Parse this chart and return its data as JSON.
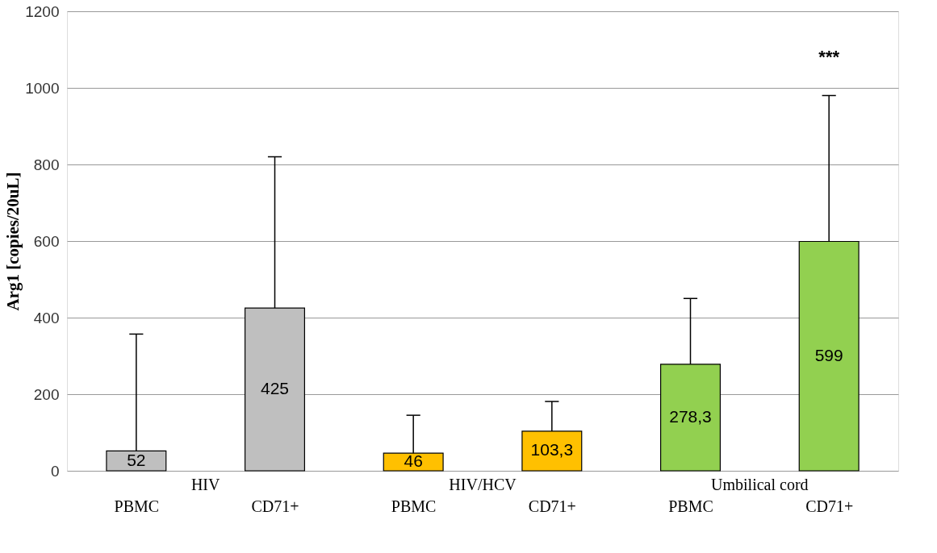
{
  "chart_data": {
    "type": "bar",
    "ylabel": "Arg1 [copies/20uL]",
    "categories": [
      "PBMC",
      "CD71+",
      "PBMC",
      "CD71+",
      "PBMC",
      "CD71+"
    ],
    "values": [
      52,
      425,
      46,
      103.3,
      278.3,
      599
    ],
    "colors": [
      "#bfbfbf",
      "#bfbfbf",
      "#ffc000",
      "#ffc000",
      "#92d050",
      "#92d050"
    ],
    "value_labels": [
      "52",
      "425",
      "46",
      "103,3",
      "278,3",
      "599"
    ],
    "errors": [
      [
        52,
        357
      ],
      [
        425,
        820
      ],
      [
        46,
        145
      ],
      [
        103.3,
        181
      ],
      [
        278.3,
        450
      ],
      [
        599,
        980
      ]
    ],
    "ylim": [
      0,
      1200
    ],
    "yticks": [
      0,
      200,
      400,
      600,
      800,
      1000,
      1200
    ],
    "grid": "y",
    "annotations": [
      "HIV",
      "HIV/HCV",
      "Umbilical cord",
      "***"
    ]
  }
}
